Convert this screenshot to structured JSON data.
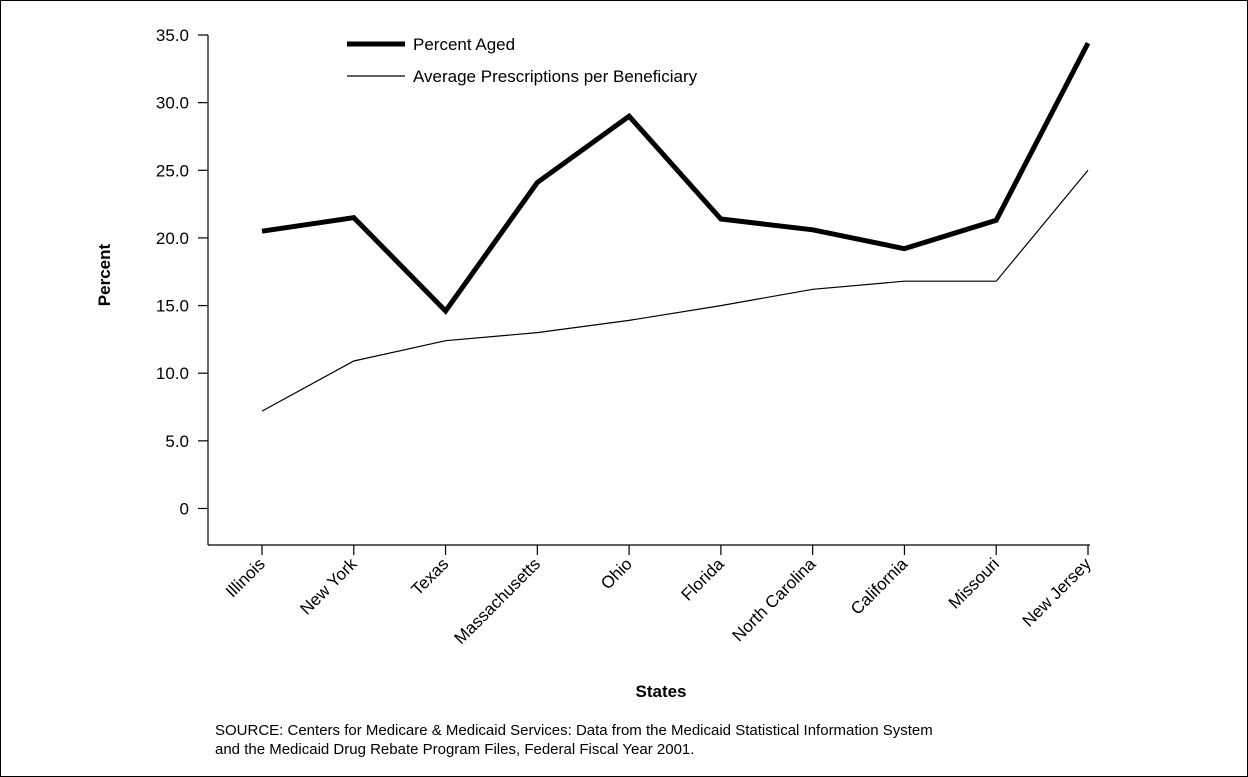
{
  "chart_data": {
    "type": "line",
    "categories": [
      "Illinois",
      "New York",
      "Texas",
      "Massachusetts",
      "Ohio",
      "Florida",
      "North Carolina",
      "California",
      "Missouri",
      "New Jersey"
    ],
    "series": [
      {
        "name": "Percent Aged",
        "values": [
          20.5,
          21.5,
          14.6,
          24.1,
          29.0,
          21.4,
          20.6,
          19.2,
          21.3,
          34.4
        ],
        "style": "thick",
        "color": "#000000"
      },
      {
        "name": "Average Prescriptions per Beneficiary",
        "values": [
          7.2,
          10.9,
          12.4,
          13.0,
          13.9,
          15.0,
          16.2,
          16.8,
          16.8,
          25.0
        ],
        "style": "thin",
        "color": "#000000"
      }
    ],
    "yticks": [
      "35.0",
      "30.0",
      "25.0",
      "20.0",
      "15.0",
      "10.0",
      "5.0",
      "0"
    ],
    "ylim": [
      -2.7,
      35.0
    ],
    "xlabel": "States",
    "ylabel": "Percent",
    "legend_position": "top",
    "grid": false
  },
  "source_note": {
    "line1": "SOURCE: Centers for Medicare & Medicaid Services: Data from the Medicaid Statistical Information System",
    "line2": "and the Medicaid Drug Rebate Program Files, Federal Fiscal Year 2001."
  }
}
